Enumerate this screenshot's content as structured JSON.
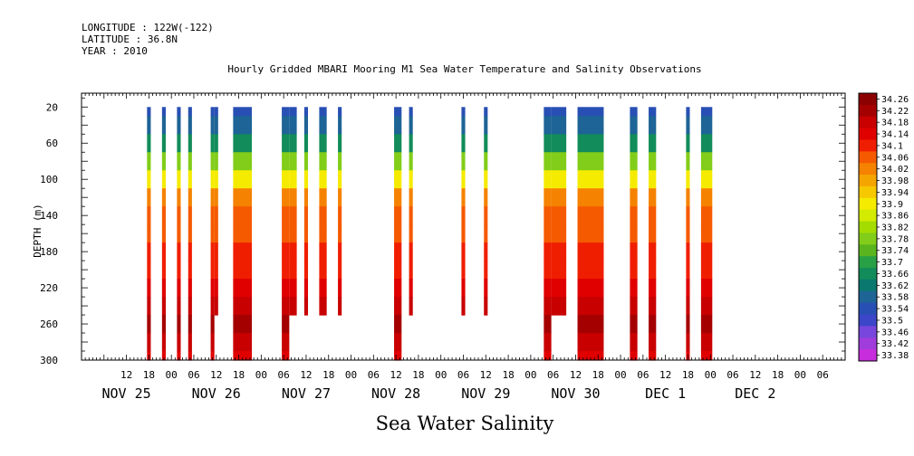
{
  "header": {
    "longitude": "LONGITUDE : 122W(-122)",
    "latitude": "LATITUDE : 36.8N",
    "year": "YEAR : 2010"
  },
  "chart_data": {
    "type": "heatmap",
    "title": "Hourly Gridded MBARI Mooring M1 Sea Water Temperature and Salinity Observations",
    "xlabel": "Sea Water Salinity",
    "ylabel": "DEPTH (m)",
    "x_range_hours": [
      0,
      204
    ],
    "x_origin": "NOV 25 00",
    "y_range": [
      300,
      0
    ],
    "y_ticks": [
      20,
      60,
      100,
      140,
      180,
      220,
      260,
      300
    ],
    "x_hour_tick_labels": [
      "12",
      "18",
      "00",
      "06",
      "12",
      "18",
      "00",
      "06",
      "12",
      "18",
      "00",
      "06",
      "12",
      "18",
      "00",
      "06",
      "12",
      "18",
      "00",
      "06",
      "12",
      "18",
      "00",
      "06",
      "12",
      "18",
      "00",
      "06",
      "12",
      "18",
      "00",
      "06"
    ],
    "day_labels": [
      {
        "text": "NOV 25",
        "hour": 12
      },
      {
        "text": "NOV 26",
        "hour": 36
      },
      {
        "text": "NOV 27",
        "hour": 60
      },
      {
        "text": "NOV 28",
        "hour": 84
      },
      {
        "text": "NOV 29",
        "hour": 108
      },
      {
        "text": "NOV 30",
        "hour": 132
      },
      {
        "text": "DEC  1",
        "hour": 156
      },
      {
        "text": "DEC  2",
        "hour": 180
      }
    ],
    "profile_depths": [
      20,
      40,
      60,
      80,
      100,
      120,
      140,
      160,
      180,
      200,
      220,
      240,
      260,
      280,
      300
    ],
    "profile_salinity": [
      33.54,
      33.58,
      33.66,
      33.78,
      33.92,
      34.02,
      34.06,
      34.08,
      34.1,
      34.12,
      34.14,
      34.18,
      34.22,
      34.18,
      34.14
    ],
    "columns": [
      {
        "start": 17.5,
        "end": 18.5,
        "bottom": 300
      },
      {
        "start": 21.5,
        "end": 22.5,
        "bottom": 300
      },
      {
        "start": 25.5,
        "end": 26.5,
        "bottom": 300
      },
      {
        "start": 28.5,
        "end": 29.5,
        "bottom": 300
      },
      {
        "start": 34.5,
        "end": 35.5,
        "bottom": 300
      },
      {
        "start": 35.5,
        "end": 36.5,
        "bottom": 250
      },
      {
        "start": 40.5,
        "end": 45.5,
        "bottom": 300
      },
      {
        "start": 53.5,
        "end": 55.5,
        "bottom": 300
      },
      {
        "start": 55.5,
        "end": 57.5,
        "bottom": 250
      },
      {
        "start": 59.5,
        "end": 60.5,
        "bottom": 250
      },
      {
        "start": 63.5,
        "end": 65.5,
        "bottom": 250
      },
      {
        "start": 68.5,
        "end": 69.5,
        "bottom": 250
      },
      {
        "start": 83.5,
        "end": 85.5,
        "bottom": 300
      },
      {
        "start": 87.5,
        "end": 88.5,
        "bottom": 250
      },
      {
        "start": 101.5,
        "end": 102.5,
        "bottom": 250
      },
      {
        "start": 107.5,
        "end": 108.5,
        "bottom": 250
      },
      {
        "start": 123.5,
        "end": 125.5,
        "bottom": 300
      },
      {
        "start": 125.5,
        "end": 129.5,
        "bottom": 250
      },
      {
        "start": 132.5,
        "end": 139.5,
        "bottom": 300
      },
      {
        "start": 146.5,
        "end": 148.5,
        "bottom": 300
      },
      {
        "start": 151.5,
        "end": 153.5,
        "bottom": 300
      },
      {
        "start": 161.5,
        "end": 162.5,
        "bottom": 300
      },
      {
        "start": 165.5,
        "end": 168.5,
        "bottom": 300
      }
    ],
    "colorbar": {
      "levels": [
        "34.26",
        "34.22",
        "34.18",
        "34.14",
        "34.1",
        "34.06",
        "34.02",
        "33.98",
        "33.94",
        "33.9",
        "33.86",
        "33.82",
        "33.78",
        "33.74",
        "33.7",
        "33.66",
        "33.62",
        "33.58",
        "33.54",
        "33.5",
        "33.46",
        "33.42",
        "33.38"
      ],
      "colors": [
        "#8b0000",
        "#a50000",
        "#c80000",
        "#e00000",
        "#f01e00",
        "#f55a00",
        "#f58200",
        "#f5a500",
        "#f5c800",
        "#f5eb00",
        "#d2eb00",
        "#a5dc00",
        "#82cd19",
        "#5ab41e",
        "#28a046",
        "#128c5a",
        "#0a786e",
        "#1e6496",
        "#2850b4",
        "#3c46c8",
        "#7846dc",
        "#a03cdc",
        "#c82ddc"
      ]
    }
  }
}
